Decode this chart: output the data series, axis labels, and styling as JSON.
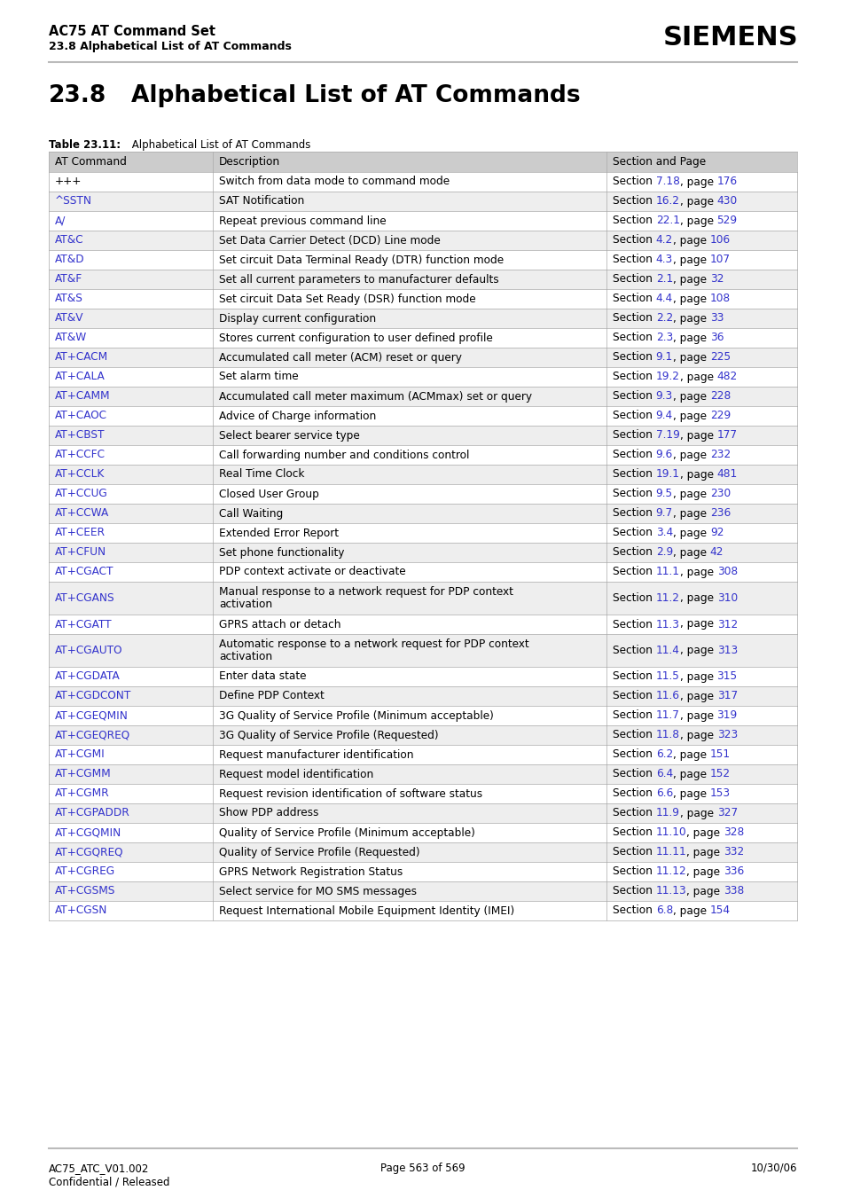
{
  "header_line1": "AC75 AT Command Set",
  "header_line2": "23.8 Alphabetical List of AT Commands",
  "siemens_logo": "SIEMENS",
  "section_title_num": "23.8",
  "section_title_text": "Alphabetical List of AT Commands",
  "table_caption_bold": "Table 23.11:",
  "table_caption_normal": " Alphabetical List of AT Commands",
  "col_headers": [
    "AT Command",
    "Description",
    "Section and Page"
  ],
  "rows": [
    {
      "cmd": "+++",
      "cmd_color": "#000000",
      "desc": "Switch from data mode to command mode",
      "sec": "Section ",
      "sec_link": "7.18",
      "sec_mid": ", page ",
      "sec_page": "176",
      "bg": "#ffffff"
    },
    {
      "cmd": "^SSTN",
      "cmd_color": "#3333cc",
      "desc": "SAT Notification",
      "sec": "Section ",
      "sec_link": "16.2",
      "sec_mid": ", page ",
      "sec_page": "430",
      "bg": "#eeeeee"
    },
    {
      "cmd": "A/",
      "cmd_color": "#3333cc",
      "desc": "Repeat previous command line",
      "sec": "Section ",
      "sec_link": "22.1",
      "sec_mid": ", page ",
      "sec_page": "529",
      "bg": "#ffffff"
    },
    {
      "cmd": "AT&C",
      "cmd_color": "#3333cc",
      "desc": "Set Data Carrier Detect (DCD) Line mode",
      "sec": "Section ",
      "sec_link": "4.2",
      "sec_mid": ", page ",
      "sec_page": "106",
      "bg": "#eeeeee"
    },
    {
      "cmd": "AT&D",
      "cmd_color": "#3333cc",
      "desc": "Set circuit Data Terminal Ready (DTR) function mode",
      "sec": "Section ",
      "sec_link": "4.3",
      "sec_mid": ", page ",
      "sec_page": "107",
      "bg": "#ffffff"
    },
    {
      "cmd": "AT&F",
      "cmd_color": "#3333cc",
      "desc": "Set all current parameters to manufacturer defaults",
      "sec": "Section ",
      "sec_link": "2.1",
      "sec_mid": ", page ",
      "sec_page": "32",
      "bg": "#eeeeee"
    },
    {
      "cmd": "AT&S",
      "cmd_color": "#3333cc",
      "desc": "Set circuit Data Set Ready (DSR) function mode",
      "sec": "Section ",
      "sec_link": "4.4",
      "sec_mid": ", page ",
      "sec_page": "108",
      "bg": "#ffffff"
    },
    {
      "cmd": "AT&V",
      "cmd_color": "#3333cc",
      "desc": "Display current configuration",
      "sec": "Section ",
      "sec_link": "2.2",
      "sec_mid": ", page ",
      "sec_page": "33",
      "bg": "#eeeeee"
    },
    {
      "cmd": "AT&W",
      "cmd_color": "#3333cc",
      "desc": "Stores current configuration to user defined profile",
      "sec": "Section ",
      "sec_link": "2.3",
      "sec_mid": ", page ",
      "sec_page": "36",
      "bg": "#ffffff"
    },
    {
      "cmd": "AT+CACM",
      "cmd_color": "#3333cc",
      "desc": "Accumulated call meter (ACM) reset or query",
      "sec": "Section ",
      "sec_link": "9.1",
      "sec_mid": ", page ",
      "sec_page": "225",
      "bg": "#eeeeee"
    },
    {
      "cmd": "AT+CALA",
      "cmd_color": "#3333cc",
      "desc": "Set alarm time",
      "sec": "Section ",
      "sec_link": "19.2",
      "sec_mid": ", page ",
      "sec_page": "482",
      "bg": "#ffffff"
    },
    {
      "cmd": "AT+CAMM",
      "cmd_color": "#3333cc",
      "desc": "Accumulated call meter maximum (ACMmax) set or query",
      "sec": "Section ",
      "sec_link": "9.3",
      "sec_mid": ", page ",
      "sec_page": "228",
      "bg": "#eeeeee"
    },
    {
      "cmd": "AT+CAOC",
      "cmd_color": "#3333cc",
      "desc": "Advice of Charge information",
      "sec": "Section ",
      "sec_link": "9.4",
      "sec_mid": ", page ",
      "sec_page": "229",
      "bg": "#ffffff"
    },
    {
      "cmd": "AT+CBST",
      "cmd_color": "#3333cc",
      "desc": "Select bearer service type",
      "sec": "Section ",
      "sec_link": "7.19",
      "sec_mid": ", page ",
      "sec_page": "177",
      "bg": "#eeeeee"
    },
    {
      "cmd": "AT+CCFC",
      "cmd_color": "#3333cc",
      "desc": "Call forwarding number and conditions control",
      "sec": "Section ",
      "sec_link": "9.6",
      "sec_mid": ", page ",
      "sec_page": "232",
      "bg": "#ffffff"
    },
    {
      "cmd": "AT+CCLK",
      "cmd_color": "#3333cc",
      "desc": "Real Time Clock",
      "sec": "Section ",
      "sec_link": "19.1",
      "sec_mid": ", page ",
      "sec_page": "481",
      "bg": "#eeeeee"
    },
    {
      "cmd": "AT+CCUG",
      "cmd_color": "#3333cc",
      "desc": "Closed User Group",
      "sec": "Section ",
      "sec_link": "9.5",
      "sec_mid": ", page ",
      "sec_page": "230",
      "bg": "#ffffff"
    },
    {
      "cmd": "AT+CCWA",
      "cmd_color": "#3333cc",
      "desc": "Call Waiting",
      "sec": "Section ",
      "sec_link": "9.7",
      "sec_mid": ", page ",
      "sec_page": "236",
      "bg": "#eeeeee"
    },
    {
      "cmd": "AT+CEER",
      "cmd_color": "#3333cc",
      "desc": "Extended Error Report",
      "sec": "Section ",
      "sec_link": "3.4",
      "sec_mid": ", page ",
      "sec_page": "92",
      "bg": "#ffffff"
    },
    {
      "cmd": "AT+CFUN",
      "cmd_color": "#3333cc",
      "desc": "Set phone functionality",
      "sec": "Section ",
      "sec_link": "2.9",
      "sec_mid": ", page ",
      "sec_page": "42",
      "bg": "#eeeeee"
    },
    {
      "cmd": "AT+CGACT",
      "cmd_color": "#3333cc",
      "desc": "PDP context activate or deactivate",
      "sec": "Section ",
      "sec_link": "11.1",
      "sec_mid": ", page ",
      "sec_page": "308",
      "bg": "#ffffff"
    },
    {
      "cmd": "AT+CGANS",
      "cmd_color": "#3333cc",
      "desc": "Manual response to a network request for PDP context\nactivation",
      "sec": "Section ",
      "sec_link": "11.2",
      "sec_mid": ", page ",
      "sec_page": "310",
      "bg": "#eeeeee",
      "tall": true
    },
    {
      "cmd": "AT+CGATT",
      "cmd_color": "#3333cc",
      "desc": "GPRS attach or detach",
      "sec": "Section ",
      "sec_link": "11.3",
      "sec_mid": ", page ",
      "sec_page": "312",
      "bg": "#ffffff"
    },
    {
      "cmd": "AT+CGAUTO",
      "cmd_color": "#3333cc",
      "desc": "Automatic response to a network request for PDP context\nactivation",
      "sec": "Section ",
      "sec_link": "11.4",
      "sec_mid": ", page ",
      "sec_page": "313",
      "bg": "#eeeeee",
      "tall": true
    },
    {
      "cmd": "AT+CGDATA",
      "cmd_color": "#3333cc",
      "desc": "Enter data state",
      "sec": "Section ",
      "sec_link": "11.5",
      "sec_mid": ", page ",
      "sec_page": "315",
      "bg": "#ffffff"
    },
    {
      "cmd": "AT+CGDCONT",
      "cmd_color": "#3333cc",
      "desc": "Define PDP Context",
      "sec": "Section ",
      "sec_link": "11.6",
      "sec_mid": ", page ",
      "sec_page": "317",
      "bg": "#eeeeee"
    },
    {
      "cmd": "AT+CGEQMIN",
      "cmd_color": "#3333cc",
      "desc": "3G Quality of Service Profile (Minimum acceptable)",
      "sec": "Section ",
      "sec_link": "11.7",
      "sec_mid": ", page ",
      "sec_page": "319",
      "bg": "#ffffff"
    },
    {
      "cmd": "AT+CGEQREQ",
      "cmd_color": "#3333cc",
      "desc": "3G Quality of Service Profile (Requested)",
      "sec": "Section ",
      "sec_link": "11.8",
      "sec_mid": ", page ",
      "sec_page": "323",
      "bg": "#eeeeee"
    },
    {
      "cmd": "AT+CGMI",
      "cmd_color": "#3333cc",
      "desc": "Request manufacturer identification",
      "sec": "Section ",
      "sec_link": "6.2",
      "sec_mid": ", page ",
      "sec_page": "151",
      "bg": "#ffffff"
    },
    {
      "cmd": "AT+CGMM",
      "cmd_color": "#3333cc",
      "desc": "Request model identification",
      "sec": "Section ",
      "sec_link": "6.4",
      "sec_mid": ", page ",
      "sec_page": "152",
      "bg": "#eeeeee"
    },
    {
      "cmd": "AT+CGMR",
      "cmd_color": "#3333cc",
      "desc": "Request revision identification of software status",
      "sec": "Section ",
      "sec_link": "6.6",
      "sec_mid": ", page ",
      "sec_page": "153",
      "bg": "#ffffff"
    },
    {
      "cmd": "AT+CGPADDR",
      "cmd_color": "#3333cc",
      "desc": "Show PDP address",
      "sec": "Section ",
      "sec_link": "11.9",
      "sec_mid": ", page ",
      "sec_page": "327",
      "bg": "#eeeeee"
    },
    {
      "cmd": "AT+CGQMIN",
      "cmd_color": "#3333cc",
      "desc": "Quality of Service Profile (Minimum acceptable)",
      "sec": "Section ",
      "sec_link": "11.10",
      "sec_mid": ", page ",
      "sec_page": "328",
      "bg": "#ffffff"
    },
    {
      "cmd": "AT+CGQREQ",
      "cmd_color": "#3333cc",
      "desc": "Quality of Service Profile (Requested)",
      "sec": "Section ",
      "sec_link": "11.11",
      "sec_mid": ", page ",
      "sec_page": "332",
      "bg": "#eeeeee"
    },
    {
      "cmd": "AT+CGREG",
      "cmd_color": "#3333cc",
      "desc": "GPRS Network Registration Status",
      "sec": "Section ",
      "sec_link": "11.12",
      "sec_mid": ", page ",
      "sec_page": "336",
      "bg": "#ffffff"
    },
    {
      "cmd": "AT+CGSMS",
      "cmd_color": "#3333cc",
      "desc": "Select service for MO SMS messages",
      "sec": "Section ",
      "sec_link": "11.13",
      "sec_mid": ", page ",
      "sec_page": "338",
      "bg": "#eeeeee"
    },
    {
      "cmd": "AT+CGSN",
      "cmd_color": "#3333cc",
      "desc": "Request International Mobile Equipment Identity (IMEI)",
      "sec": "Section ",
      "sec_link": "6.8",
      "sec_mid": ", page ",
      "sec_page": "154",
      "bg": "#ffffff"
    }
  ],
  "footer_left1": "AC75_ATC_V01.002",
  "footer_left2": "Confidential / Released",
  "footer_center": "Page 563 of 569",
  "footer_right": "10/30/06",
  "link_color": "#3333cc",
  "header_bg": "#cccccc",
  "border_color": "#aaaaaa",
  "text_color": "#000000"
}
